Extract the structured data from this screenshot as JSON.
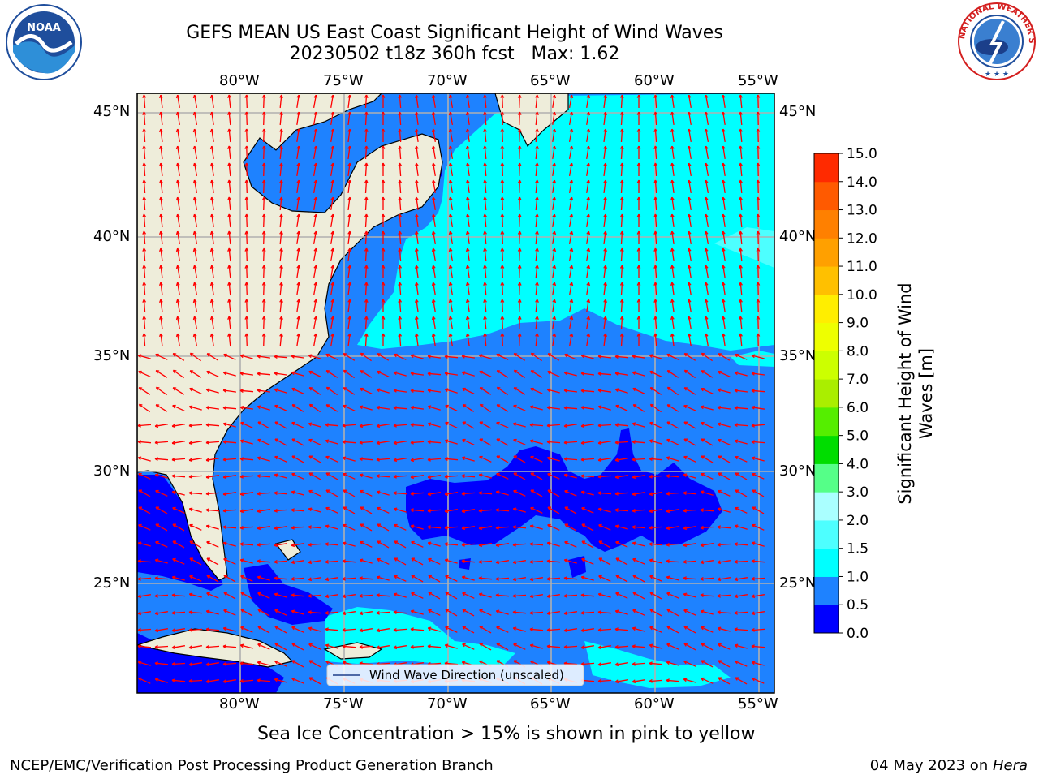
{
  "title": {
    "line1": "GEFS MEAN US East Coast Significant Height of Wind Waves",
    "line2": "20230502 t18z 360h fcst   Max: 1.62"
  },
  "map": {
    "longitude_ticks": [
      "80°W",
      "75°W",
      "70°W",
      "65°W",
      "60°W",
      "55°W"
    ],
    "latitude_ticks": [
      "45°N",
      "40°N",
      "35°N",
      "30°N",
      "25°N"
    ],
    "legend_label": "Wind Wave Direction (unscaled)",
    "colors": {
      "land": "#eeedda",
      "level_0_0p5": "#0000ff",
      "level_0p5_1": "#1e82ff",
      "level_1_1p5": "#00ffff",
      "level_1p5_2": "#4dffff",
      "arrows": "#ff0000",
      "grid": "#b0b0b0"
    }
  },
  "colorbar": {
    "label": "Significant Height of Wind Waves [m]",
    "ticks": [
      "0.0",
      "0.5",
      "1.0",
      "1.5",
      "2.0",
      "3.0",
      "4.0",
      "5.0",
      "6.0",
      "7.0",
      "8.0",
      "9.0",
      "10.0",
      "11.0",
      "12.0",
      "13.0",
      "14.0",
      "15.0"
    ],
    "colors": [
      "#0000ff",
      "#1e82ff",
      "#00ffff",
      "#4dffff",
      "#aaffff",
      "#55ff88",
      "#00dd00",
      "#55ee00",
      "#aaee00",
      "#ccff00",
      "#eeff00",
      "#ffee00",
      "#ffc000",
      "#ffa000",
      "#ff8000",
      "#ff5a00",
      "#ff2a00"
    ]
  },
  "footer": {
    "sea_ice_note": "Sea Ice Concentration > 15% is shown in pink to yellow",
    "credit": "NCEP/EMC/Verification Post Processing Product Generation Branch",
    "date": "04 May 2023 on ",
    "machine": "Hera"
  },
  "logos": {
    "noaa_text": "NOAA",
    "nws_text": "NATIONAL WEATHER SERVICE"
  }
}
